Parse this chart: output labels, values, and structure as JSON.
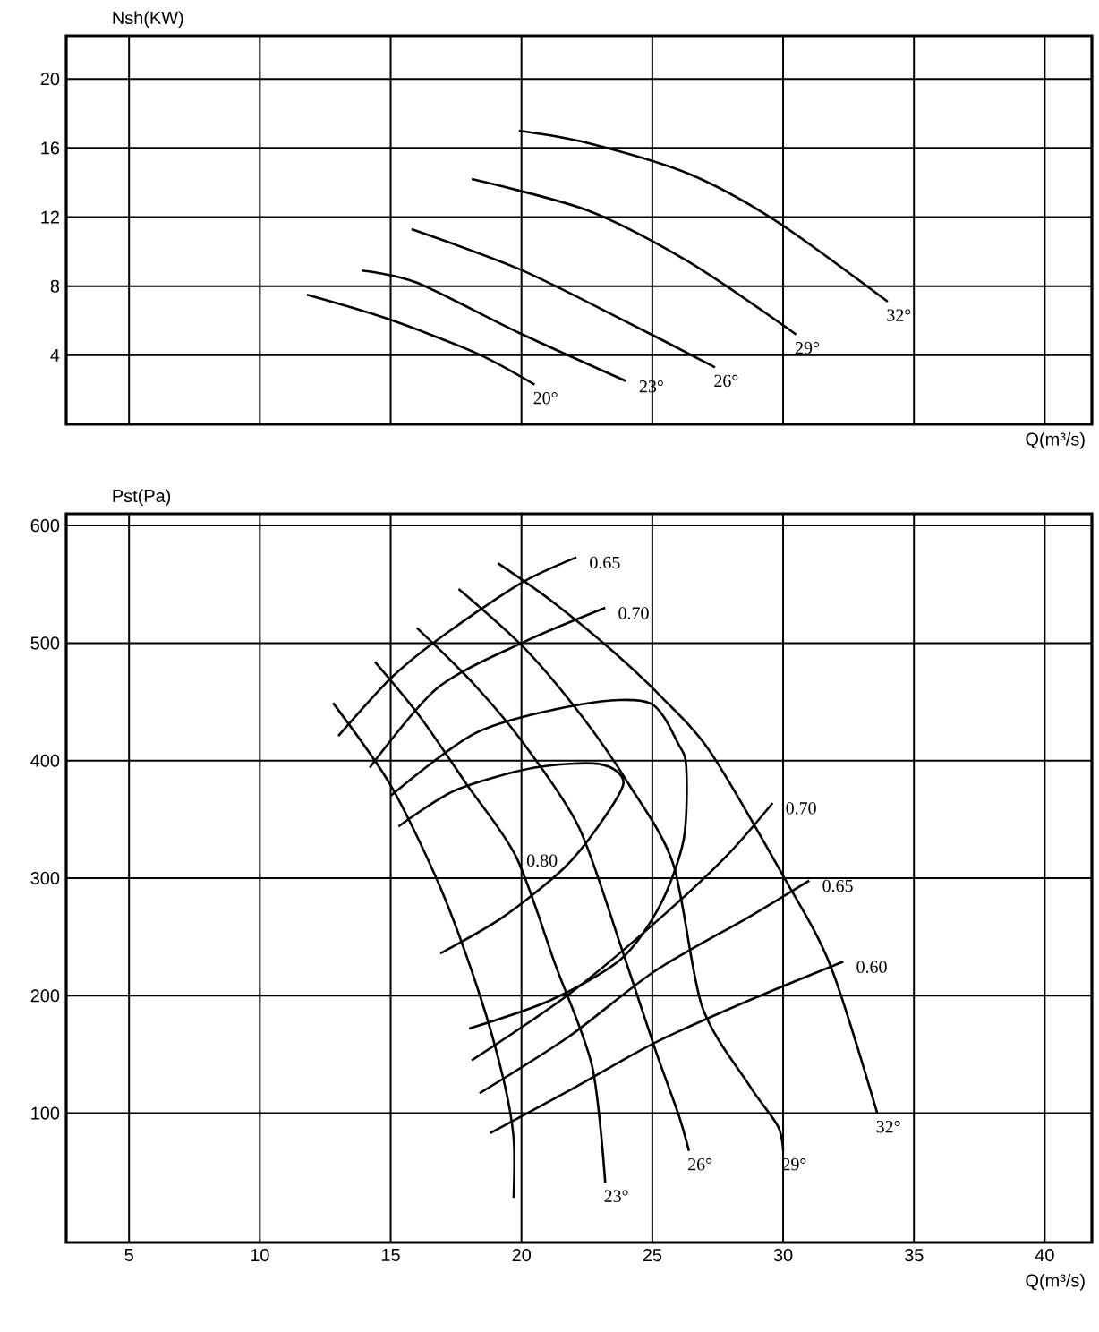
{
  "chart_data": [
    {
      "type": "line",
      "ylabel": "Nsh(KW)",
      "xlabel": "Q(m³/s)",
      "xlim": [
        2.6,
        41.8
      ],
      "ylim": [
        0,
        22.5
      ],
      "xticks": [
        5,
        10,
        15,
        20,
        25,
        30,
        35,
        40
      ],
      "yticks": [
        4,
        8,
        12,
        16,
        20
      ],
      "tick_labels": "y",
      "grid": true,
      "series": [
        {
          "name": "20°",
          "color": "#000000",
          "x": [
            11.8,
            14.9,
            18.3,
            20.5
          ],
          "values": [
            7.5,
            6.1,
            4.1,
            2.3
          ]
        },
        {
          "name": "23°",
          "color": "#000000",
          "x": [
            13.9,
            16.0,
            19.9,
            24.0
          ],
          "values": [
            8.9,
            8.2,
            5.3,
            2.5
          ]
        },
        {
          "name": "26°",
          "color": "#000000",
          "x": [
            15.8,
            19.9,
            23.8,
            27.4
          ],
          "values": [
            11.3,
            9.0,
            6.1,
            3.3
          ]
        },
        {
          "name": "29°",
          "color": "#000000",
          "x": [
            18.1,
            22.5,
            26.4,
            30.5
          ],
          "values": [
            14.2,
            12.4,
            9.4,
            5.2
          ]
        },
        {
          "name": "32°",
          "color": "#000000",
          "x": [
            19.9,
            22.5,
            26.4,
            29.7,
            34.0
          ],
          "values": [
            17.0,
            16.3,
            14.5,
            11.8,
            7.1
          ]
        }
      ]
    },
    {
      "type": "line",
      "ylabel": "Pst(Pa)",
      "xlabel": "Q(m³/s)",
      "xlim": [
        2.6,
        41.8
      ],
      "ylim": [
        -10,
        610
      ],
      "xticks": [
        5,
        10,
        15,
        20,
        25,
        30,
        35,
        40
      ],
      "yticks": [
        100,
        200,
        300,
        400,
        500,
        600
      ],
      "grid": true,
      "series": [
        {
          "color": "#000000",
          "x": [
            12.8,
            15.0,
            16.9,
            18.4,
            19.3,
            19.7,
            19.7
          ],
          "values": [
            449,
            379,
            292,
            201,
            130,
            79,
            28
          ]
        },
        {
          "name": "23°",
          "color": "#000000",
          "x": [
            14.4,
            16.1,
            17.9,
            19.8,
            21.3,
            22.7,
            23.2
          ],
          "values": [
            484,
            438,
            380,
            318,
            226,
            140,
            41
          ]
        },
        {
          "name": "26°",
          "color": "#000000",
          "x": [
            16.0,
            18.1,
            20.1,
            22.2,
            23.8,
            25.1,
            26.0,
            26.4
          ],
          "values": [
            513,
            467,
            414,
            343,
            242,
            155,
            99,
            68
          ]
        },
        {
          "name": "29°",
          "color": "#000000",
          "x": [
            17.6,
            20.1,
            22.3,
            24.1,
            25.8,
            26.9,
            28.7,
            29.8,
            30.0
          ],
          "values": [
            546,
            496,
            438,
            380,
            312,
            191,
            124,
            89,
            68
          ]
        },
        {
          "name": "32°",
          "color": "#000000",
          "x": [
            19.1,
            21.2,
            23.6,
            25.4,
            27.2,
            30.0,
            31.8,
            33.6
          ],
          "values": [
            568,
            535,
            491,
            453,
            408,
            302,
            226,
            100
          ]
        },
        {
          "name": "0.65",
          "color": "#000000",
          "x": [
            13.0,
            15.0,
            16.8,
            19.9,
            22.1
          ],
          "values": [
            421,
            470,
            503,
            550,
            573
          ]
        },
        {
          "name": "0.70",
          "color": "#000000",
          "x": [
            14.2,
            16.8,
            20.1,
            23.2
          ],
          "values": [
            394,
            462,
            501,
            530
          ]
        },
        {
          "color": "#000000",
          "x": [
            15.0,
            18.3,
            22.3,
            24.9,
            26.0,
            26.3,
            26.2,
            25.3,
            23.8,
            21.1,
            18.0
          ],
          "values": [
            370,
            424,
            448,
            449,
            414,
            394,
            333,
            277,
            231,
            196,
            172
          ]
        },
        {
          "name": "0.80",
          "color": "#000000",
          "x": [
            15.3,
            17.5,
            20.5,
            23.0,
            23.9,
            22.9,
            21.6,
            19.3,
            16.9
          ],
          "values": [
            344,
            375,
            394,
            397,
            381,
            343,
            308,
            267,
            236
          ]
        },
        {
          "name": "0.70",
          "color": "#000000",
          "x": [
            18.1,
            21.8,
            25.1,
            27.8,
            29.6
          ],
          "values": [
            145,
            201,
            262,
            318,
            364
          ]
        },
        {
          "name": "0.65",
          "color": "#000000",
          "x": [
            18.4,
            21.8,
            25.1,
            28.7,
            31.0
          ],
          "values": [
            117,
            165,
            221,
            267,
            298
          ]
        },
        {
          "name": "0.60",
          "color": "#000000",
          "x": [
            18.8,
            21.8,
            25.1,
            28.7,
            32.3
          ],
          "values": [
            83,
            119,
            160,
            196,
            229
          ]
        }
      ]
    }
  ]
}
